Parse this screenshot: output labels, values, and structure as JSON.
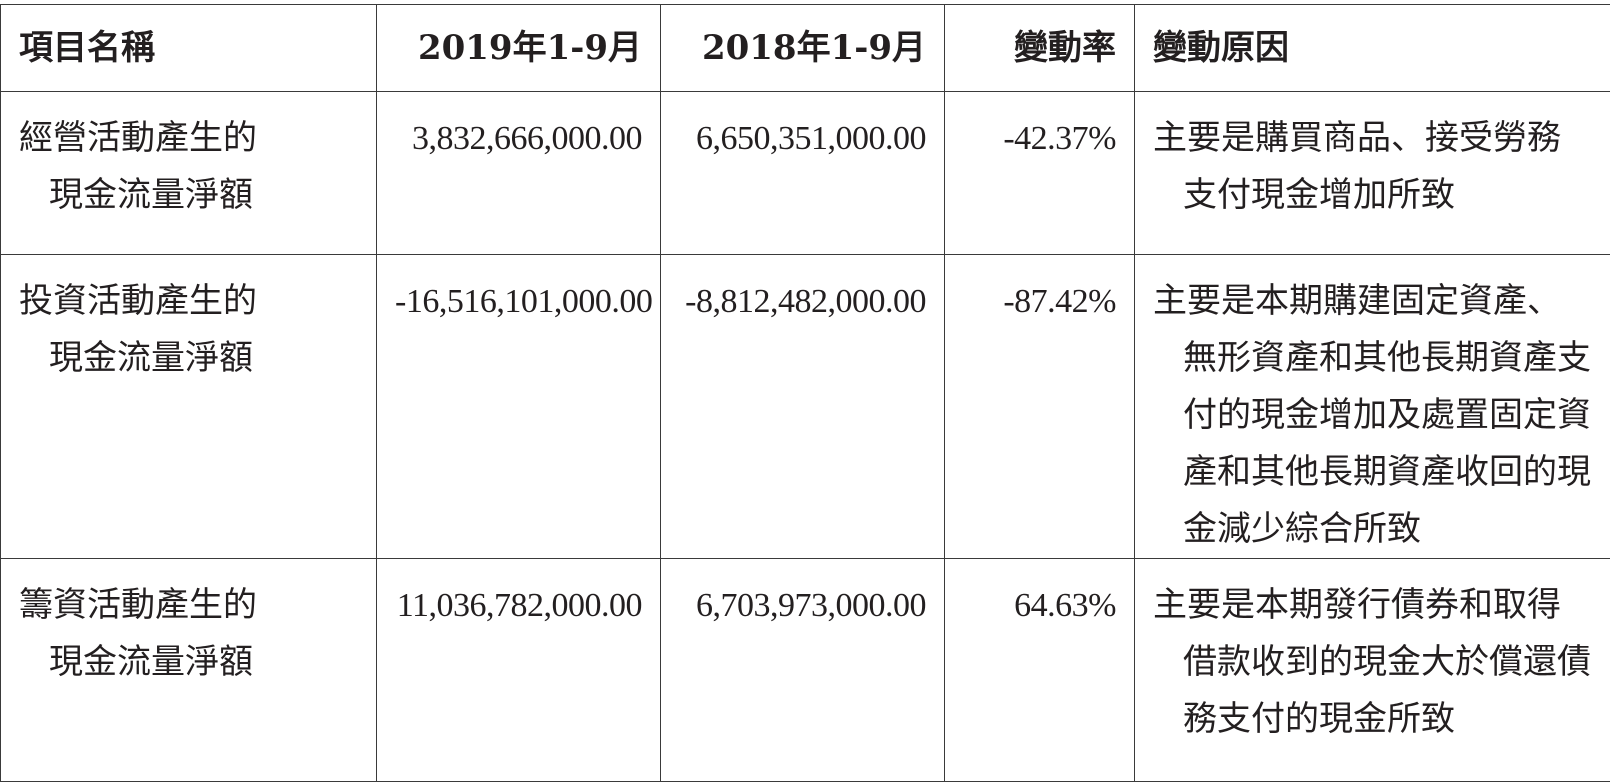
{
  "headers": {
    "item": "項目名稱",
    "y2019": "2019年1-9月",
    "y2018": "2018年1-9月",
    "rate": "變動率",
    "reason": "變動原因"
  },
  "rows": [
    {
      "item_line1": "經營活動產生的",
      "item_line2": "現金流量淨額",
      "y2019": "3,832,666,000.00",
      "y2018": "6,650,351,000.00",
      "rate": "-42.37%",
      "reason": "主要是購買商品、接受勞務支付現金增加所致"
    },
    {
      "item_line1": "投資活動產生的",
      "item_line2": "現金流量淨額",
      "y2019": "-16,516,101,000.00",
      "y2018": "-8,812,482,000.00",
      "rate": "-87.42%",
      "reason": "主要是本期購建固定資產、無形資產和其他長期資產支付的現金增加及處置固定資產和其他長期資產收回的現金減少綜合所致"
    },
    {
      "item_line1": "籌資活動產生的",
      "item_line2": "現金流量淨額",
      "y2019": "11,036,782,000.00",
      "y2018": "6,703,973,000.00",
      "rate": "64.63%",
      "reason": "主要是本期發行債券和取得借款收到的現金大於償還債務支付的現金所致"
    }
  ]
}
